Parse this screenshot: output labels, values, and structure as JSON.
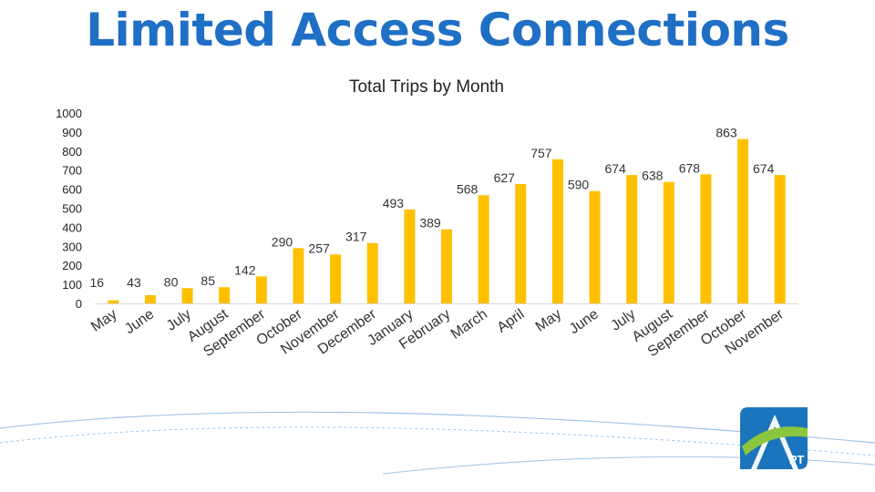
{
  "page": {
    "title": "Limited Access Connections"
  },
  "logo": {
    "text": "PT",
    "colors": {
      "primary": "#1b75bc",
      "secondary": "#8cc63f"
    }
  },
  "colors": {
    "title": "#1f6fc5",
    "bar": "#ffc000",
    "gridline": "#d9d9d9",
    "swoosh": "#9fc4e8"
  },
  "chart_data": {
    "type": "bar",
    "title": "Total Trips by Month",
    "xlabel": "",
    "ylabel": "",
    "ylim": [
      0,
      1000
    ],
    "yticks": [
      "0",
      "100",
      "200",
      "300",
      "400",
      "500",
      "600",
      "700",
      "800",
      "900",
      "1000"
    ],
    "grid": false,
    "legend": "none",
    "categories": [
      "May",
      "June",
      "July",
      "August",
      "September",
      "October",
      "November",
      "December",
      "January",
      "February",
      "March",
      "April",
      "May",
      "June",
      "July",
      "August",
      "September",
      "October",
      "November"
    ],
    "values": [
      16,
      43,
      80,
      85,
      142,
      290,
      257,
      317,
      493,
      389,
      568,
      627,
      757,
      590,
      674,
      638,
      678,
      863,
      674
    ]
  }
}
